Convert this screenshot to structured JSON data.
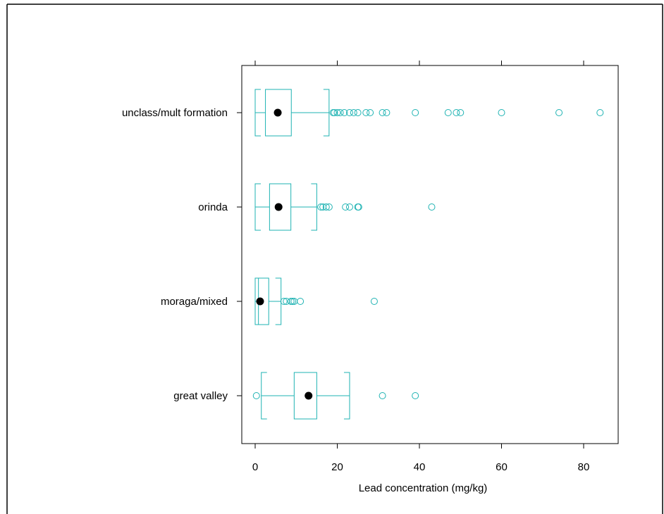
{
  "chart_data": {
    "type": "boxplot",
    "orientation": "horizontal",
    "xlabel": "Lead concentration (mg/kg)",
    "ylabel": "",
    "title": "",
    "xlim": [
      -3,
      87
    ],
    "xticks": [
      0,
      20,
      40,
      60,
      80
    ],
    "grid": false,
    "legend": "none",
    "colors": {
      "box": "#1fb3b3",
      "median": "#000000",
      "axis": "#000000"
    },
    "categories": [
      "great valley",
      "moraga/mixed",
      "orinda",
      "unclass/mult formation"
    ],
    "boxes": [
      {
        "name": "great valley",
        "whisker_low": 1.5,
        "q1": 9.5,
        "median": 13,
        "q3": 15,
        "whisker_high": 23,
        "outliers": [
          0.3,
          31,
          39
        ]
      },
      {
        "name": "moraga/mixed",
        "whisker_low": 0,
        "q1": 0.8,
        "median": 1.2,
        "q3": 3.3,
        "whisker_high": 6.3,
        "outliers": [
          7,
          7.6,
          8.7,
          9.1,
          9.5,
          11,
          29
        ]
      },
      {
        "name": "orinda",
        "whisker_low": 0,
        "q1": 3.5,
        "median": 5.7,
        "q3": 8.7,
        "whisker_high": 15,
        "outliers": [
          16,
          16.5,
          17.3,
          18,
          22,
          23,
          25,
          25.2,
          43
        ]
      },
      {
        "name": "unclass/mult formation",
        "whisker_low": 0,
        "q1": 2.5,
        "median": 5.5,
        "q3": 8.8,
        "whisker_high": 18,
        "outliers": [
          19,
          19.3,
          20,
          20.7,
          21.7,
          23,
          24,
          25,
          27,
          28,
          31,
          32,
          39,
          47,
          49,
          50,
          60,
          74,
          84
        ]
      }
    ]
  }
}
